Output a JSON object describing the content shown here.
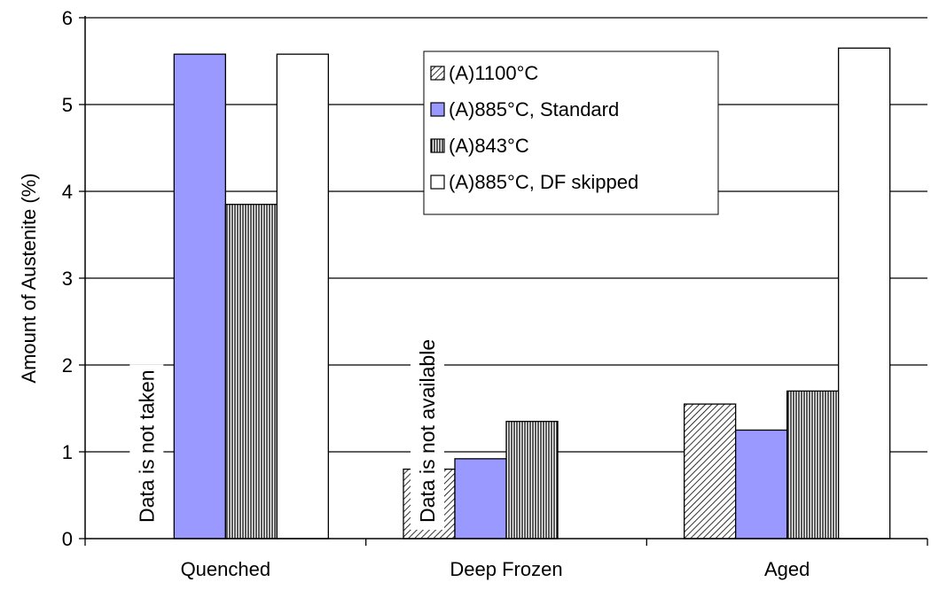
{
  "chart_data": {
    "type": "bar",
    "title": "",
    "xlabel": "",
    "ylabel": "Amount of Austenite (%)",
    "ylim": [
      0,
      6
    ],
    "yticks": [
      "0",
      "1",
      "2",
      "3",
      "4",
      "5",
      "6"
    ],
    "grid": true,
    "legend_position": "top-center",
    "categories": [
      "Quenched",
      "Deep Frozen",
      "Aged"
    ],
    "series": [
      {
        "name": "(A)1100°C",
        "pattern": "diagonal-hatch",
        "color": "#000000",
        "values": [
          null,
          0.8,
          1.55
        ]
      },
      {
        "name": "(A)885°C, Standard",
        "pattern": "solid",
        "color": "#9999ff",
        "values": [
          5.58,
          0.92,
          1.25
        ]
      },
      {
        "name": "(A)843°C",
        "pattern": "vertical-lines",
        "color": "#000000",
        "values": [
          3.85,
          1.35,
          1.7
        ]
      },
      {
        "name": "(A)885°C, DF skipped",
        "pattern": "solid",
        "color": "#ffffff",
        "values": [
          5.58,
          null,
          5.65
        ]
      }
    ],
    "annotations": [
      {
        "text": "Data is not taken",
        "category": "Quenched"
      },
      {
        "text": "Data is not available",
        "category": "Deep Frozen"
      }
    ]
  }
}
